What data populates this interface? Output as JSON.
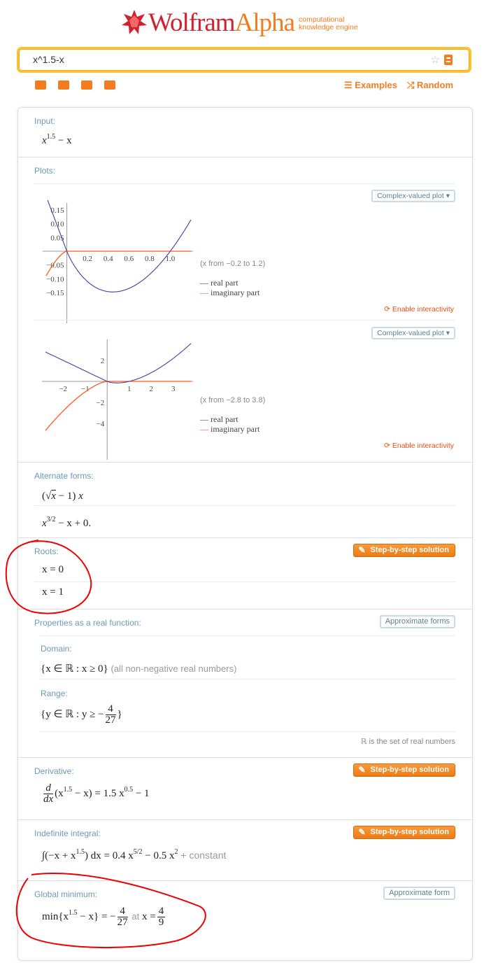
{
  "logo": {
    "wolfram": "Wolfram",
    "alpha": "Alpha",
    "tagline1": "computational",
    "tagline2": "knowledge engine"
  },
  "search": {
    "value": "x^1.5-x"
  },
  "header": {
    "examples": "Examples",
    "random": "Random"
  },
  "input": {
    "label": "Input:",
    "base": "x",
    "exp": "1.5",
    "rest": " − x"
  },
  "plots": {
    "label": "Plots:",
    "dropdown": "Complex-valued plot ▾",
    "enable": "Enable interactivity",
    "legend_real": "real part",
    "legend_imag": "imaginary part",
    "colors": {
      "real": "#3f3fa0",
      "imag": "#ff5a1a"
    }
  },
  "chart_data": [
    {
      "type": "line",
      "function": "x^1.5 - x",
      "range_text": "(x from −0.2 to 1.2)",
      "xlim": [
        -0.2,
        1.2
      ],
      "ylim": [
        -0.15,
        0.17
      ],
      "xticks": [
        "0.2",
        "0.4",
        "0.6",
        "0.8",
        "1.0"
      ],
      "xtick_values": [
        0.2,
        0.4,
        0.6,
        0.8,
        1.0
      ],
      "yticks": [
        "0.15",
        "0.10",
        "0.05",
        "−0.05",
        "−0.10",
        "−0.15"
      ],
      "ytick_values": [
        0.15,
        0.1,
        0.05,
        -0.05,
        -0.1,
        -0.15
      ],
      "series": [
        {
          "name": "real part"
        },
        {
          "name": "imaginary part"
        }
      ]
    },
    {
      "type": "line",
      "function": "x^1.5 - x",
      "range_text": "(x from −2.8 to 3.8)",
      "xlim": [
        -2.8,
        3.8
      ],
      "ylim": [
        -4.7,
        3.6
      ],
      "xticks": [
        "−2",
        "−1",
        "1",
        "2",
        "3"
      ],
      "xtick_values": [
        -2,
        -1,
        1,
        2,
        3
      ],
      "yticks": [
        "2",
        "−2",
        "−4"
      ],
      "ytick_values": [
        2,
        -2,
        -4
      ],
      "series": [
        {
          "name": "real part"
        },
        {
          "name": "imaginary part"
        }
      ]
    }
  ],
  "alternate": {
    "label": "Alternate forms:",
    "f1a": "(",
    "f1b": "x",
    "f1c": " − 1) ",
    "f1d": "x",
    "f2a": "x",
    "f2exp": "3/2",
    "f2b": " − x + 0."
  },
  "roots": {
    "label": "Roots:",
    "step": "Step-by-step solution",
    "r1": "x = 0",
    "r2": "x = 1"
  },
  "properties": {
    "label": "Properties as a real function:",
    "approx": "Approximate forms",
    "domain_label": "Domain:",
    "domain": "{x ∈ ℝ : x ≥ 0}",
    "domain_note": "(all non-negative real numbers)",
    "range_label": "Range:",
    "range_a": "{y ∈ ℝ : y ≥ −",
    "range_num": "4",
    "range_den": "27",
    "range_b": "}",
    "note": "ℝ is the set of real numbers"
  },
  "derivative": {
    "label": "Derivative:",
    "step": "Step-by-step solution",
    "d": "d",
    "dx": "dx",
    "lhs": "(x",
    "exp": "1.5",
    "lhs2": " − x) = 1.5 x",
    "exp2": "0.5",
    "rhs": " − 1"
  },
  "integral": {
    "label": "Indefinite integral:",
    "step": "Step-by-step solution",
    "a": "∫(−x + x",
    "exp": "1.5",
    "b": ") dx = 0.4 x",
    "exp2": "5/2",
    "c": " − 0.5 x",
    "exp3": "2",
    "constant": " + constant"
  },
  "minimum": {
    "label": "Global minimum:",
    "approx": "Approximate form",
    "a": "min{x",
    "exp": "1.5",
    "b": " − x} = −",
    "num": "4",
    "den": "27",
    "at": "at",
    "c": "x =",
    "num2": "4",
    "den2": "9"
  }
}
